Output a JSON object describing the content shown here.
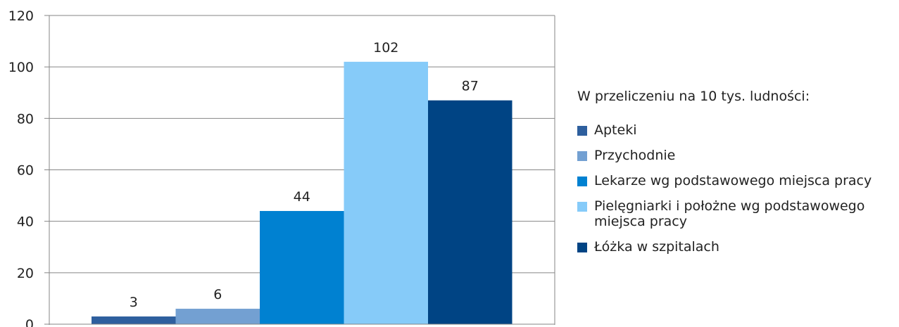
{
  "chart_data": {
    "type": "bar",
    "legend_title": "W przeliczeniu na 10 tys. ludności:",
    "legend_position": "right",
    "grid": true,
    "ylim": [
      0,
      120
    ],
    "yticks": [
      "0",
      "20",
      "40",
      "60",
      "80",
      "100",
      "120"
    ],
    "series": [
      {
        "name": "Apteki",
        "value": 3,
        "color": "#2e5f9e"
      },
      {
        "name": "Przychodnie",
        "value": 6,
        "color": "#73a0d2"
      },
      {
        "name": "Lekarze wg podstawowego miejsca pracy",
        "value": 44,
        "color": "#0081d1"
      },
      {
        "name": "Pielęgniarki i położne wg podstawowego miejsca pracy",
        "value": 102,
        "color": "#86cbf9"
      },
      {
        "name": "Łóżka w szpitalach",
        "value": 87,
        "color": "#004484"
      }
    ]
  }
}
